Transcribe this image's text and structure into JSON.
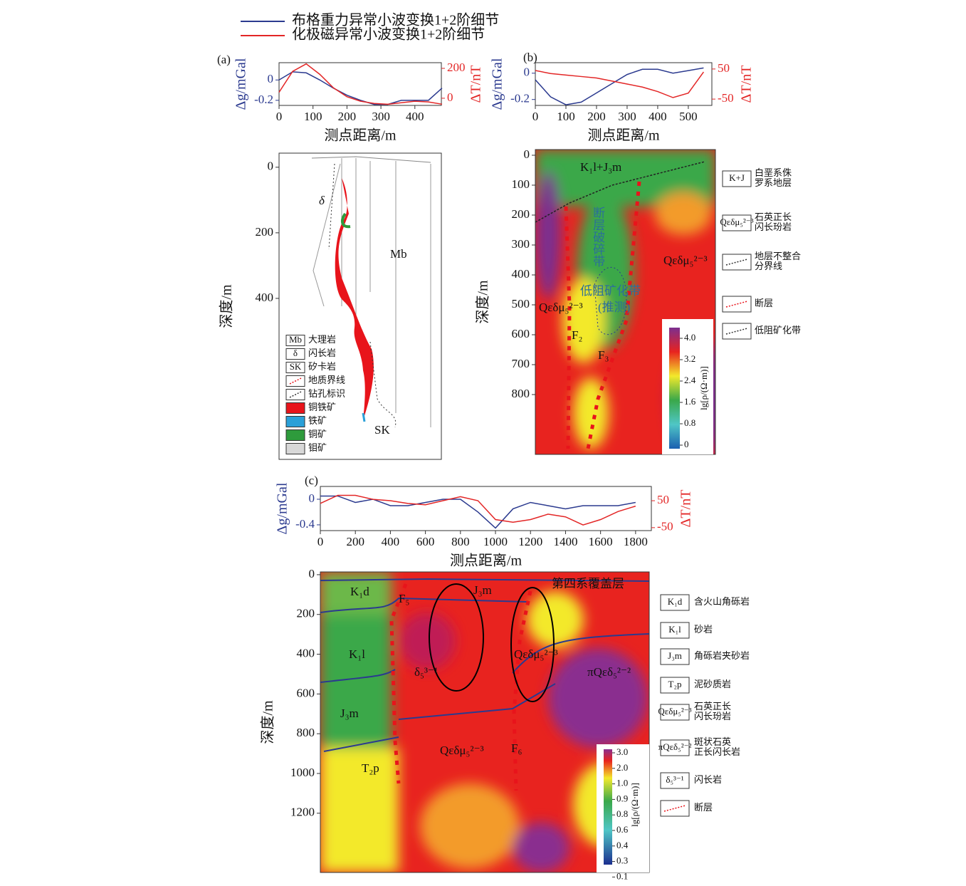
{
  "chart_data": [
    {
      "type": "line",
      "panel": "(a)",
      "xlabel": "测点距离/m",
      "ylabel": "Δg/mGal",
      "y2label": "ΔT/nT",
      "x": [
        0,
        40,
        80,
        120,
        160,
        200,
        240,
        280,
        320,
        360,
        400,
        440,
        480
      ],
      "xlim": [
        0,
        478
      ],
      "xticks": [
        0,
        100,
        200,
        300,
        400
      ],
      "ylim": [
        -0.25,
        0.17
      ],
      "yticks": [
        0,
        -0.2
      ],
      "y2lim": [
        -48,
        238
      ],
      "y2ticks": [
        200,
        0
      ],
      "series": [
        {
          "name": "布格重力异常小波变换1+2阶细节",
          "color": "#2b3a8f",
          "values": [
            0.0,
            0.08,
            0.07,
            0.0,
            -0.08,
            -0.15,
            -0.2,
            -0.24,
            -0.24,
            -0.2,
            -0.2,
            -0.2,
            -0.08
          ]
        },
        {
          "name": "化极磁异常小波变换1+2阶细节",
          "color": "#e32626",
          "axis": "y2",
          "values": [
            40,
            180,
            230,
            160,
            70,
            10,
            -20,
            -35,
            -40,
            -30,
            -20,
            -25,
            -40
          ]
        }
      ]
    },
    {
      "type": "line",
      "panel": "(b)",
      "xlabel": "测点距离/m",
      "ylabel": "Δg/mGal",
      "y2label": "ΔT/nT",
      "x": [
        0,
        50,
        100,
        150,
        200,
        250,
        300,
        350,
        400,
        450,
        500,
        550
      ],
      "xlim": [
        0,
        577
      ],
      "xticks": [
        0,
        100,
        200,
        300,
        400,
        500
      ],
      "ylim": [
        -0.245,
        0.08
      ],
      "yticks": [
        0,
        -0.2
      ],
      "y2lim": [
        -71,
        71
      ],
      "y2ticks": [
        50,
        -50
      ],
      "series": [
        {
          "color": "#2b3a8f",
          "values": [
            -0.05,
            -0.18,
            -0.24,
            -0.22,
            -0.15,
            -0.08,
            -0.01,
            0.03,
            0.03,
            0.0,
            0.02,
            0.04
          ]
        },
        {
          "color": "#e32626",
          "axis": "y2",
          "values": [
            45,
            35,
            30,
            25,
            20,
            10,
            0,
            -10,
            -25,
            -45,
            -30,
            40
          ]
        }
      ]
    },
    {
      "type": "line",
      "panel": "(c)",
      "xlabel": "测点距离/m",
      "ylabel": "Δg/mGal",
      "y2label": "ΔT/nT",
      "x": [
        0,
        100,
        200,
        300,
        400,
        500,
        600,
        700,
        800,
        900,
        1000,
        1100,
        1200,
        1300,
        1400,
        1500,
        1600,
        1700,
        1800
      ],
      "xlim": [
        0,
        1890
      ],
      "xticks": [
        0,
        200,
        400,
        600,
        800,
        1000,
        1200,
        1400,
        1600,
        1800
      ],
      "ylim": [
        -0.49,
        0.2
      ],
      "yticks": [
        0,
        -0.4
      ],
      "y2lim": [
        -61,
        103
      ],
      "y2ticks": [
        50,
        -50
      ],
      "series": [
        {
          "color": "#2b3a8f",
          "values": [
            0.05,
            0.05,
            -0.05,
            0.0,
            -0.1,
            -0.1,
            -0.05,
            0.0,
            0.0,
            -0.2,
            -0.45,
            -0.15,
            -0.05,
            -0.1,
            -0.15,
            -0.1,
            -0.1,
            -0.1,
            -0.05
          ]
        },
        {
          "color": "#e32626",
          "axis": "y2",
          "values": [
            40,
            70,
            70,
            55,
            50,
            40,
            35,
            50,
            65,
            50,
            -20,
            -30,
            -20,
            0,
            -10,
            -40,
            -20,
            10,
            30
          ]
        }
      ]
    }
  ],
  "sections": {
    "a": {
      "ylabel": "深度/m",
      "ylim": [
        -43,
        891
      ],
      "yticks": [
        0,
        200,
        400
      ],
      "labels": [
        "δ",
        "Mb",
        "SK"
      ],
      "legend": [
        {
          "box": "Mb",
          "text": "大理岩"
        },
        {
          "box": "δ",
          "text": "闪长岩"
        },
        {
          "box": "SK",
          "text": "矽卡岩"
        },
        {
          "text": "地质界线"
        },
        {
          "text": "钻孔标识"
        },
        {
          "text": "铜铁矿"
        },
        {
          "text": "铁矿"
        },
        {
          "text": "铜矿"
        },
        {
          "text": "钼矿"
        }
      ]
    },
    "b": {
      "ylabel": "深度/m",
      "ylim": [
        -19,
        1000
      ],
      "yticks": [
        0,
        100,
        200,
        300,
        400,
        500,
        600,
        700,
        800
      ],
      "labels": [
        "K₁l+J₃m",
        "断层破碎带",
        "Qεδμ₅²⁻³",
        "Qεδμ₅²⁻³",
        "低阻矿化带",
        "(推测)",
        "F₂",
        "F₃"
      ],
      "colorbar": {
        "label": "lg[ρ/(Ω·m)]",
        "ticks": [
          {
            "value": 4,
            "label": "4.0"
          },
          3.2,
          2.4,
          1.6,
          0.8,
          0
        ]
      },
      "legend": [
        {
          "box": "K+J",
          "text": [
            "白垩系侏",
            "罗系地层"
          ]
        },
        {
          "box": "Qεδμ₅²⁻³",
          "text": [
            "石英正长",
            "闪长玢岩"
          ]
        },
        {
          "text": [
            "地层不整合",
            "分界线"
          ]
        },
        {
          "text": [
            "断层"
          ]
        },
        {
          "text": [
            "低阻矿化带"
          ]
        }
      ]
    },
    "c": {
      "ylabel": "深度/m",
      "ylim": [
        -14,
        1498
      ],
      "yticks": [
        0,
        200,
        400,
        600,
        800,
        1000,
        1200
      ],
      "labels": [
        "K₁d",
        "F₅",
        "J₃m",
        "第四系覆盖层",
        "K₁l",
        "δ₅³⁻¹",
        "Qεδμ₅²⁻³",
        "πQεδ₅²⁻²",
        "J₃m",
        "Qεδμ₅²⁻³",
        "F₆",
        "T₂p"
      ],
      "colorbar": {
        "label": "lg[ρ/(Ω·m)]",
        "ticks": [
          {
            "value": 3,
            "label": "3.0"
          },
          {
            "value": 2,
            "label": "2.0"
          },
          {
            "value": 1,
            "label": "1.0"
          },
          0.9,
          0.8,
          0.6,
          0.4,
          0.3,
          0.1
        ]
      },
      "legend": [
        {
          "box": "K₁d",
          "text": [
            "含火山角砾岩"
          ]
        },
        {
          "box": "K₁l",
          "text": [
            "砂岩"
          ]
        },
        {
          "box": "J₃m",
          "text": [
            "角砾岩夹砂岩"
          ]
        },
        {
          "box": "T₂p",
          "text": [
            "泥砂质岩"
          ]
        },
        {
          "box": "Qεδμ₅²⁻³",
          "text": [
            "石英正长",
            "闪长玢岩"
          ]
        },
        {
          "box": "πQεδ₅²⁻²",
          "text": [
            "斑状石英",
            "正长闪长岩"
          ]
        },
        {
          "box": "δ₅³⁻¹",
          "text": [
            "闪长岩"
          ]
        },
        {
          "text": [
            "断层"
          ]
        }
      ]
    }
  }
}
